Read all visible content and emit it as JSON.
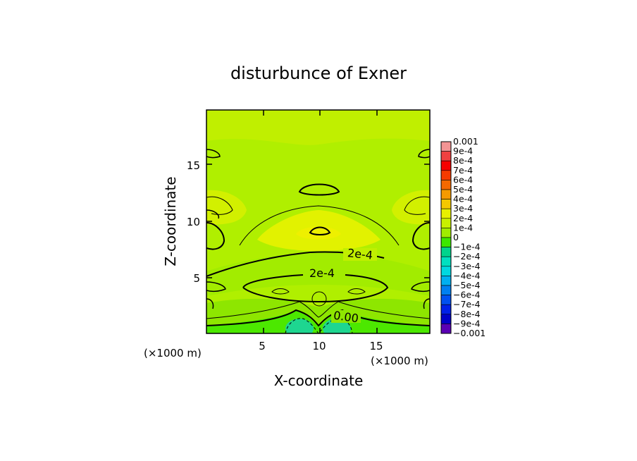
{
  "chart_data": {
    "type": "heatmap",
    "title": "disturbunce of Exner",
    "xlabel": "X-coordinate",
    "ylabel": "Z-coordinate",
    "x_unit": "(×1000 m)",
    "y_unit": "(×1000 m)",
    "xlim": [
      0,
      19.5
    ],
    "ylim": [
      0,
      19.5
    ],
    "x_ticks": [
      "5",
      "10",
      "15"
    ],
    "y_ticks": [
      "5",
      "10",
      "15"
    ],
    "colorbar": {
      "labels": [
        "0.001",
        "9e-4",
        "8e-4",
        "7e-4",
        "6e-4",
        "5e-4",
        "4e-4",
        "3e-4",
        "2e-4",
        "1e-4",
        "0",
        "−1e-4",
        "−2e-4",
        "−3e-4",
        "−4e-4",
        "−5e-4",
        "−6e-4",
        "−7e-4",
        "−8e-4",
        "−9e-4",
        "−0.001"
      ],
      "colors": [
        "#f39494",
        "#ef4040",
        "#f50000",
        "#f53a00",
        "#f56900",
        "#f59a00",
        "#f5c800",
        "#e8f000",
        "#c8f000",
        "#a0ec00",
        "#3ce800",
        "#00d48c",
        "#00e0c0",
        "#00d8e0",
        "#00b0f0",
        "#0080f0",
        "#0050f0",
        "#0020e8",
        "#0000c8",
        "#5a00b4"
      ]
    },
    "contour_labels": [
      "2e-4",
      "2e-4",
      "0.00"
    ],
    "grid": false,
    "legend": "colorbar-right"
  }
}
